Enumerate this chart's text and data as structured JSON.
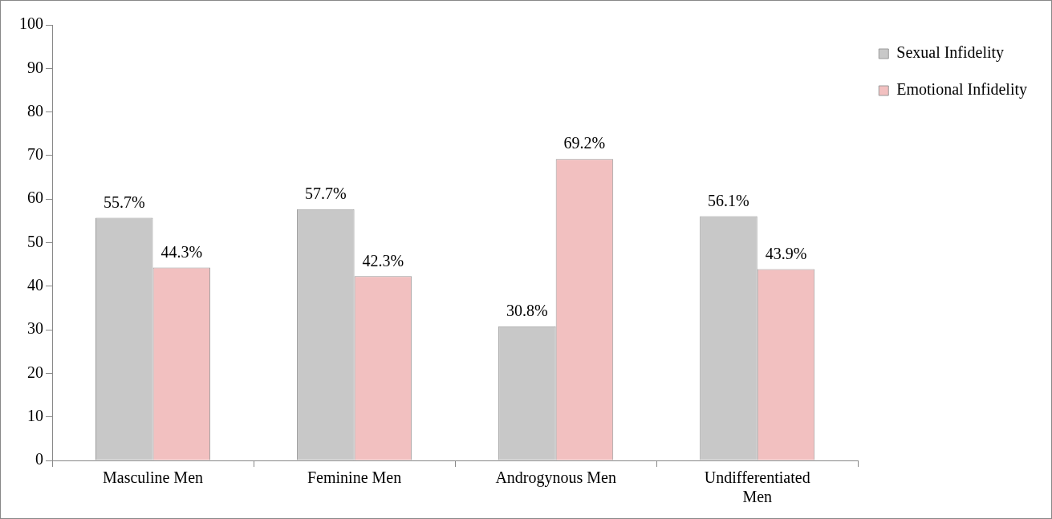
{
  "chart_data": {
    "type": "bar",
    "categories": [
      "Masculine Men",
      "Feminine Men",
      "Androgynous Men",
      "Undifferentiated Men"
    ],
    "series": [
      {
        "name": "Sexual Infidelity",
        "color": "#c8c8c8",
        "values": [
          55.7,
          57.7,
          30.8,
          56.1
        ],
        "value_labels": [
          "55.7%",
          "57.7%",
          "30.8%",
          "56.1%"
        ]
      },
      {
        "name": "Emotional Infidelity",
        "color": "#f2c0c0",
        "values": [
          44.3,
          42.3,
          69.2,
          43.9
        ],
        "value_labels": [
          "44.3%",
          "42.3%",
          "69.2%",
          "43.9%"
        ]
      }
    ],
    "ylim": [
      0,
      100
    ],
    "yticks": [
      0,
      10,
      20,
      30,
      40,
      50,
      60,
      70,
      80,
      90,
      100
    ],
    "grid": false,
    "legend": "right"
  }
}
